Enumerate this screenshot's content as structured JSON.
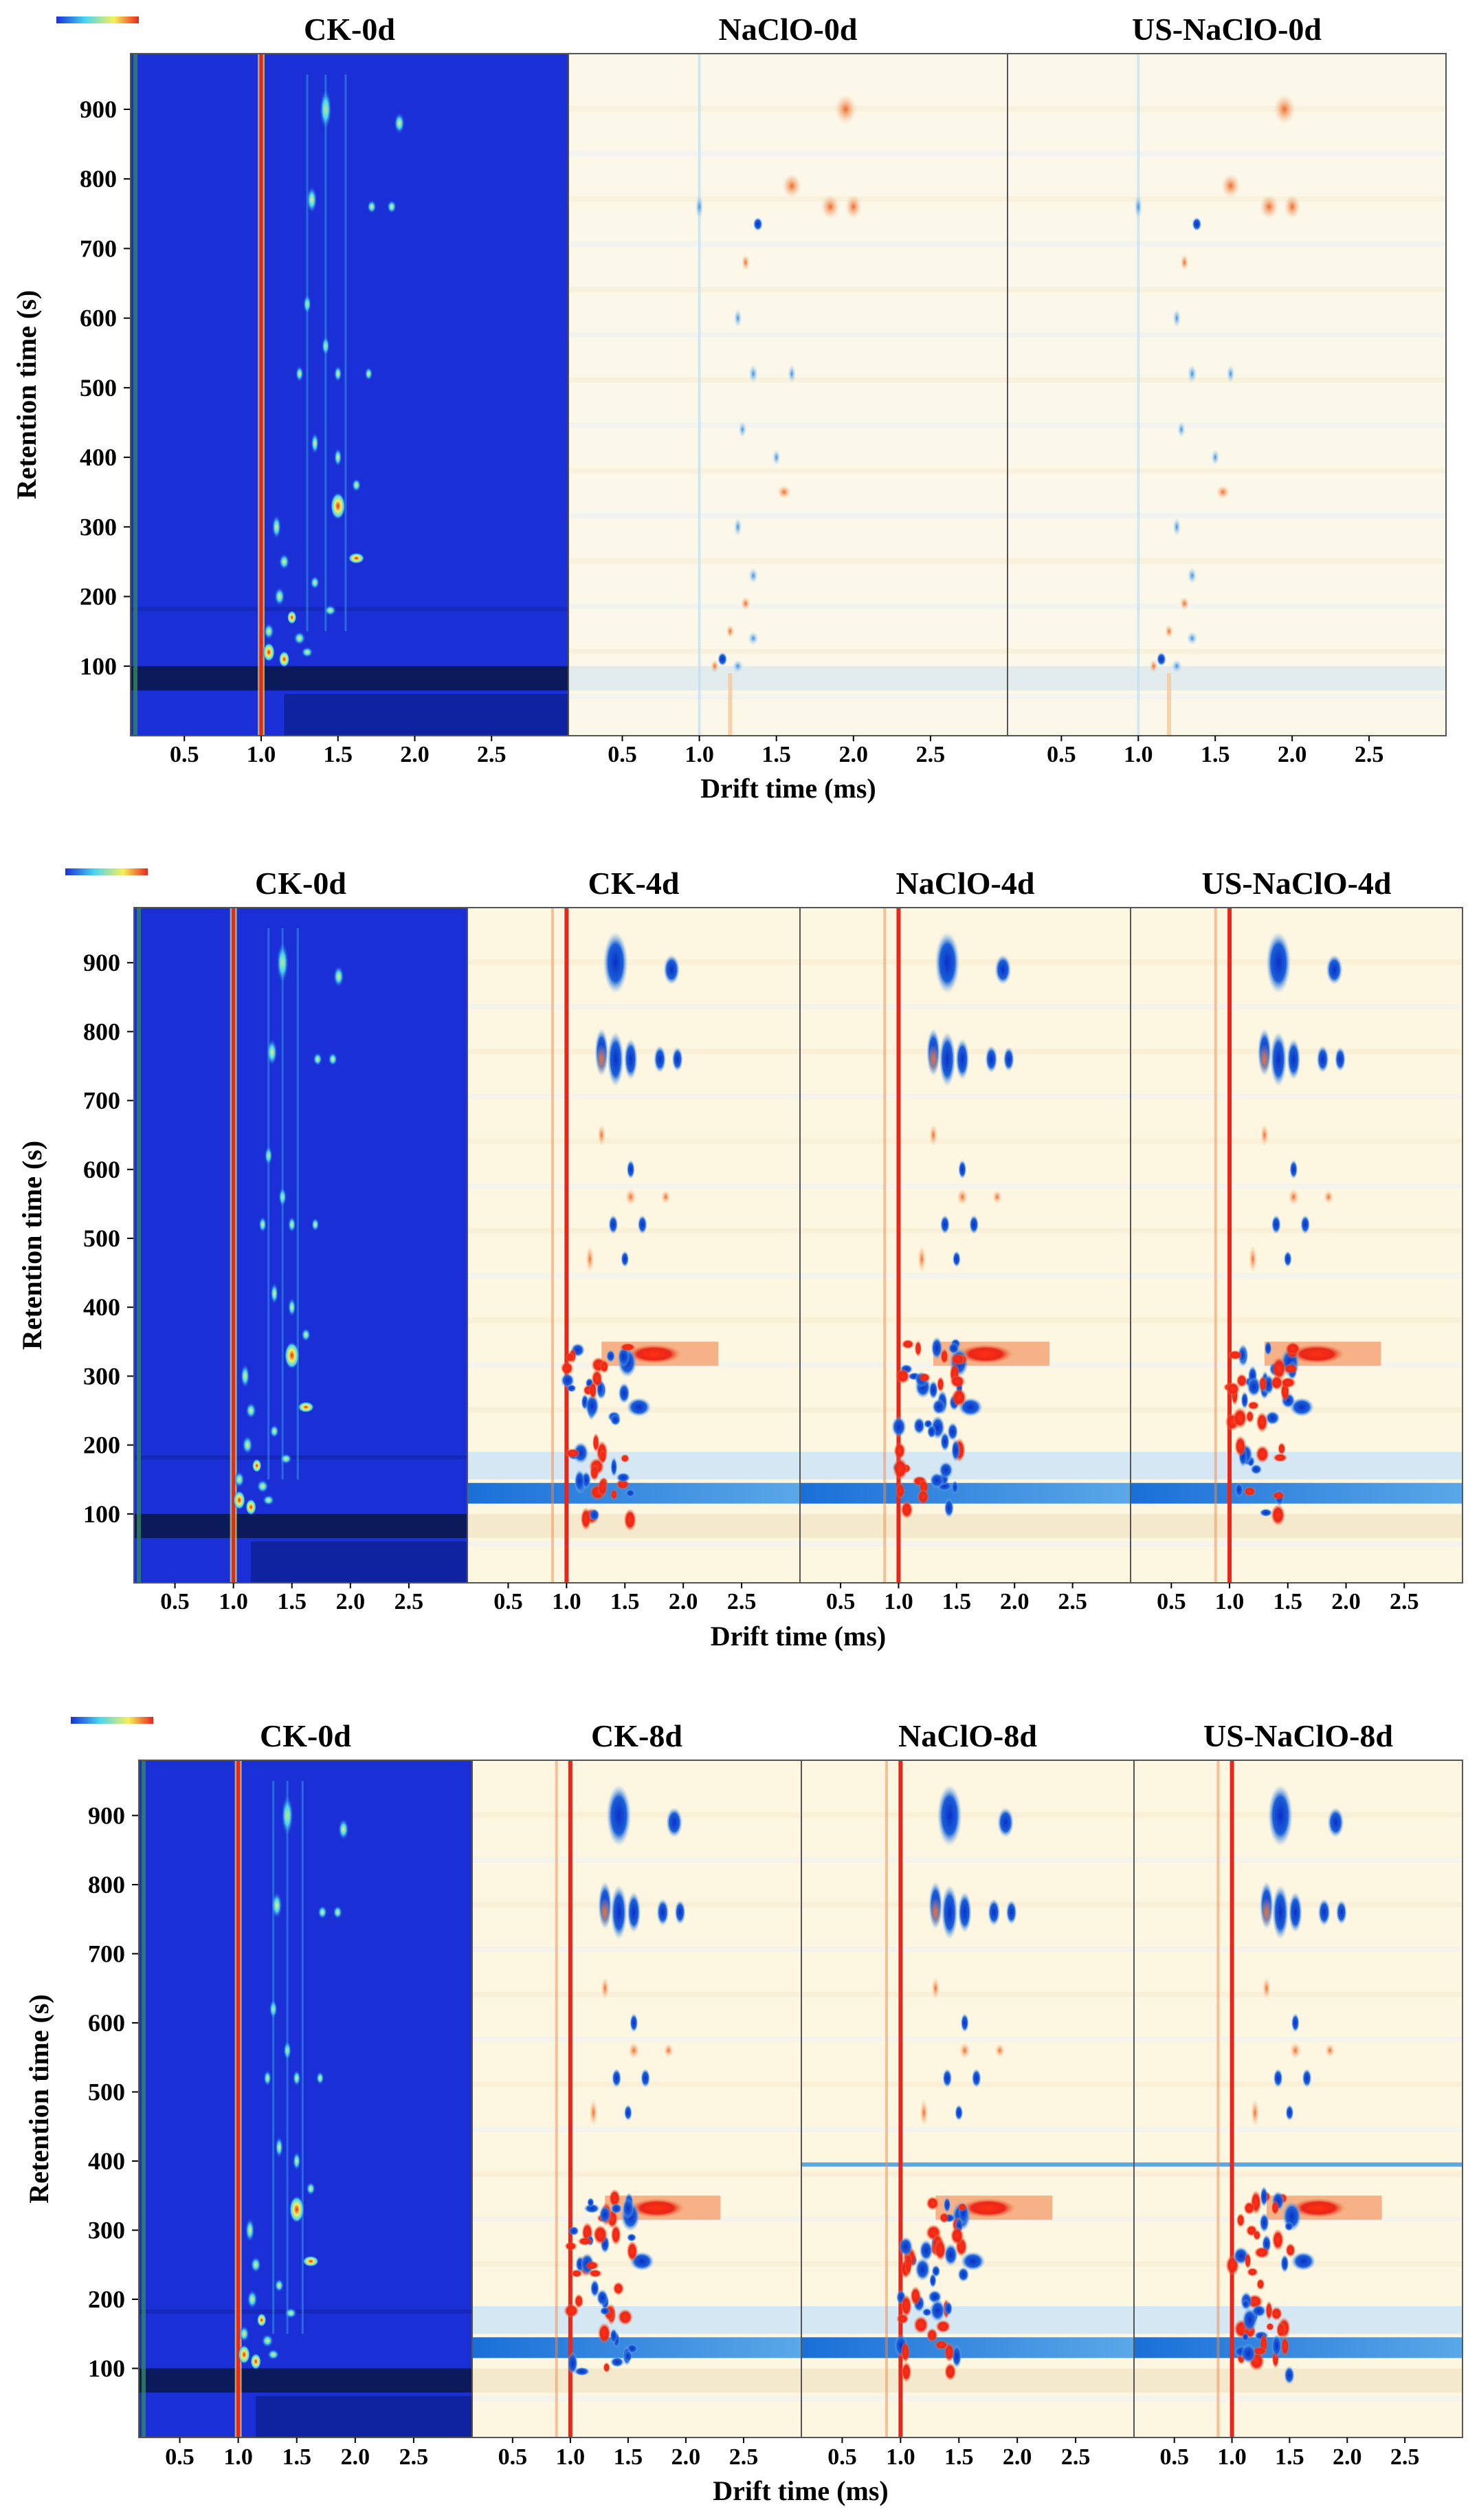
{
  "colors": {
    "base_blue": "#1a2fd6",
    "dark_band": "#0b1a5a",
    "diff_bg": "#fdf6e0",
    "red": "#e8261a",
    "orange": "#f08a4a",
    "blue_peak": "#1a5fd8",
    "light_blue": "#8fc8f0",
    "cyan": "#49d6f0",
    "yellow": "#f5f05a",
    "frame": "#555555"
  },
  "chart_data": [
    {
      "type": "heatmap",
      "ylabel": "Retention time (s)",
      "xlabel": "Drift time (ms)",
      "yticks": [
        "900",
        "800",
        "700",
        "600",
        "500",
        "400",
        "300",
        "200",
        "100"
      ],
      "xticks": [
        "0.5",
        "1.0",
        "1.5",
        "2.0",
        "2.5"
      ],
      "ylim": [
        0,
        980
      ],
      "xlim": [
        0.15,
        3.0
      ],
      "colorbar": [
        "#1a2fd6",
        "#49d6f0",
        "#f5f05a",
        "#e8261a"
      ],
      "panels": [
        {
          "title": "CK-0d",
          "kind": "topographic"
        },
        {
          "title": "NaClO-0d",
          "kind": "difference"
        },
        {
          "title": "US-NaClO-0d",
          "kind": "difference"
        }
      ]
    },
    {
      "type": "heatmap",
      "ylabel": "Retention time (s)",
      "xlabel": "Drift time (ms)",
      "yticks": [
        "900",
        "800",
        "700",
        "600",
        "500",
        "400",
        "300",
        "200",
        "100"
      ],
      "xticks": [
        "0.5",
        "1.0",
        "1.5",
        "2.0",
        "2.5"
      ],
      "ylim": [
        0,
        980
      ],
      "xlim": [
        0.15,
        3.0
      ],
      "colorbar": [
        "#1a2fd6",
        "#49d6f0",
        "#f5f05a",
        "#e8261a"
      ],
      "panels": [
        {
          "title": "CK-0d",
          "kind": "topographic"
        },
        {
          "title": "CK-4d",
          "kind": "difference"
        },
        {
          "title": "NaClO-4d",
          "kind": "difference"
        },
        {
          "title": "US-NaClO-4d",
          "kind": "difference"
        }
      ]
    },
    {
      "type": "heatmap",
      "ylabel": "Retention time (s)",
      "xlabel": "Drift time (ms)",
      "yticks": [
        "900",
        "800",
        "700",
        "600",
        "500",
        "400",
        "300",
        "200",
        "100"
      ],
      "xticks": [
        "0.5",
        "1.0",
        "1.5",
        "2.0",
        "2.5"
      ],
      "ylim": [
        0,
        980
      ],
      "xlim": [
        0.15,
        3.0
      ],
      "colorbar": [
        "#1a2fd6",
        "#49d6f0",
        "#f5f05a",
        "#e8261a"
      ],
      "panels": [
        {
          "title": "CK-0d",
          "kind": "topographic"
        },
        {
          "title": "CK-8d",
          "kind": "difference"
        },
        {
          "title": "NaClO-8d",
          "kind": "difference"
        },
        {
          "title": "US-NaClO-8d",
          "kind": "difference"
        }
      ]
    }
  ]
}
